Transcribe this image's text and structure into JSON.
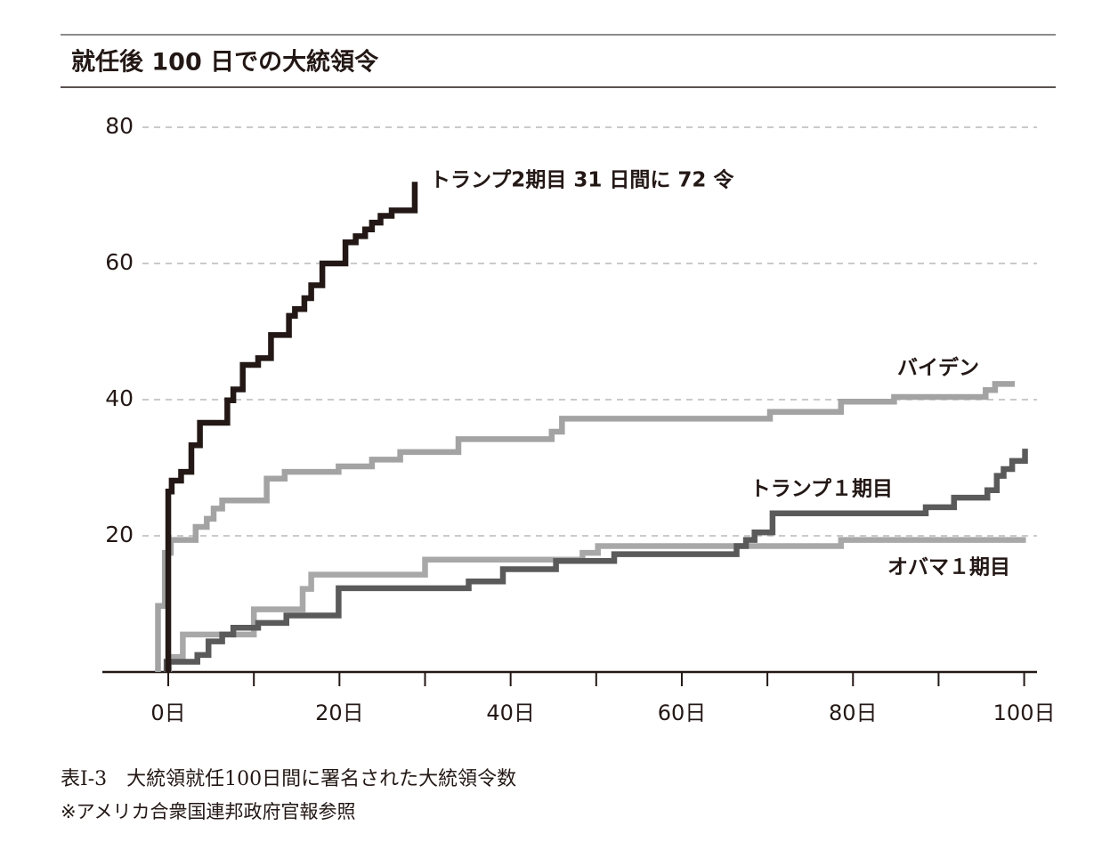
{
  "chart_data": {
    "type": "step-line",
    "title": "就任後 100 日での大統領令",
    "caption": "表I-3　大統領就任100日間に署名された大統領令数",
    "note": "※アメリカ合衆国連邦政府官報参照",
    "xlim": [
      -7.7,
      101.5
    ],
    "ylim": [
      0,
      80
    ],
    "xticks": [
      {
        "value": 0,
        "label": "0日"
      },
      {
        "value": 20,
        "label": "20日"
      },
      {
        "value": 40,
        "label": "40日"
      },
      {
        "value": 60,
        "label": "60日"
      },
      {
        "value": 80,
        "label": "80日"
      },
      {
        "value": 100,
        "label": "100日"
      }
    ],
    "xminorticks": [
      10,
      30,
      50,
      70,
      90
    ],
    "yticks": [
      20,
      40,
      60,
      80
    ],
    "grid": true,
    "series": [
      {
        "name": "トランプ2期目 31 日間に 72 令",
        "color": "#231815",
        "x": [
          0,
          0,
          0.4,
          1.5,
          2.7,
          3.7,
          6.9,
          7.6,
          8.7,
          10.5,
          12,
          14.1,
          14.8,
          15.9,
          16.7,
          18,
          20.7,
          21.9,
          23,
          23.8,
          24.8,
          26.1,
          28.8
        ],
        "values": [
          0,
          26.5,
          28.1,
          29.4,
          33.3,
          36.6,
          39.9,
          41.5,
          45.1,
          46.1,
          49.5,
          52.3,
          53.3,
          54.9,
          56.8,
          60,
          63.1,
          64,
          65,
          66,
          67,
          67.8,
          72
        ]
      },
      {
        "name": "バイデン",
        "color": "#a3a3a3",
        "x": [
          -1.2,
          -1.2,
          -0.4,
          0.3,
          3.2,
          4.5,
          5.3,
          6.3,
          11.5,
          13.6,
          19.9,
          23.8,
          27.1,
          33.9,
          44.8,
          46,
          70.3,
          78.6,
          84.8,
          95.5,
          96.6,
          98.9
        ],
        "values": [
          0,
          9.7,
          17.5,
          19.4,
          21.3,
          22.5,
          24,
          25.2,
          28.4,
          29.4,
          30.2,
          31.2,
          32.3,
          34.2,
          35.3,
          37.2,
          38.2,
          39.7,
          40.4,
          41.4,
          42.3,
          42.3
        ]
      },
      {
        "name": "トランプ１期目",
        "color": "#5a5a5a",
        "x": [
          -0.2,
          -0.2,
          3.4,
          4.7,
          6.3,
          7.6,
          10.5,
          13.8,
          19.9,
          35.1,
          39.1,
          45.3,
          52.1,
          66.4,
          67.5,
          68.5,
          70.6,
          88.5,
          91.8,
          95.7,
          96.8,
          97.6,
          98.6,
          100.1
        ],
        "values": [
          0,
          1.5,
          2.5,
          4.5,
          5.5,
          6.5,
          7.2,
          8.3,
          12.3,
          13.3,
          15.1,
          16.3,
          17.3,
          18.5,
          19.4,
          20.5,
          23.3,
          24.2,
          25.6,
          26.7,
          28.8,
          29.8,
          31,
          32.8
        ]
      },
      {
        "name": "オバマ１期目",
        "color": "#a8a8a8",
        "x": [
          0.1,
          0.1,
          1.7,
          10,
          15.7,
          16.7,
          30,
          48.4,
          50.2,
          78.6,
          100.2
        ],
        "values": [
          0,
          2.2,
          5.5,
          9.2,
          12.2,
          14.3,
          16.5,
          17.5,
          18.5,
          19.4,
          19.4
        ]
      }
    ]
  }
}
